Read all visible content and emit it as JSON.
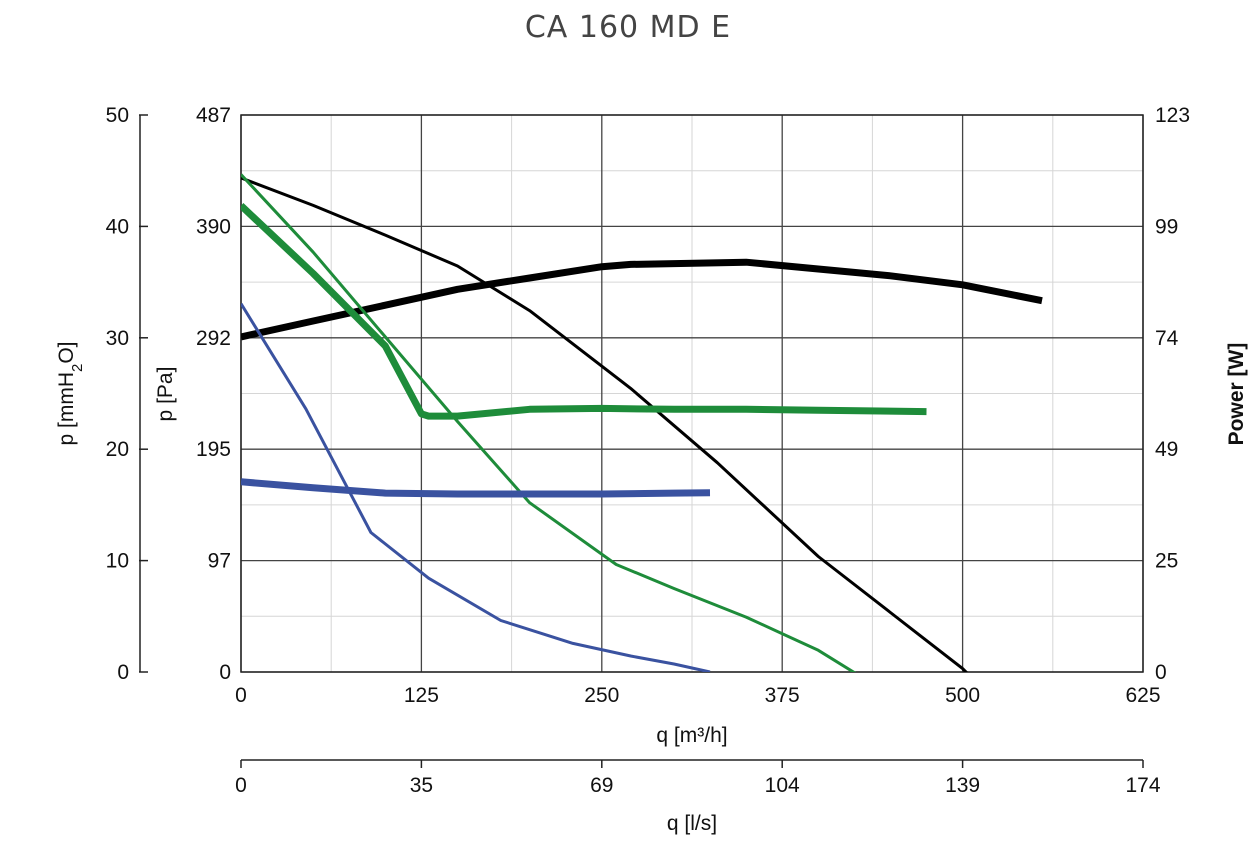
{
  "chart_data": {
    "type": "line",
    "title": "CA 160 MD E",
    "x_primary": {
      "label": "q [m³/h]",
      "range": [
        0,
        625
      ],
      "ticks": [
        "0",
        "125",
        "250",
        "375",
        "500",
        "625"
      ]
    },
    "x_secondary": {
      "label": "q [l/s]",
      "range": [
        0,
        174
      ],
      "ticks": [
        "0",
        "35",
        "69",
        "104",
        "139",
        "174"
      ]
    },
    "y_left_outer": {
      "label_main": "p [mmH",
      "label_sub": "2",
      "label_end": "O]",
      "range": [
        0,
        50
      ],
      "ticks": [
        "0",
        "10",
        "20",
        "30",
        "40",
        "50"
      ]
    },
    "y_left_inner": {
      "label": "p [Pa]",
      "range": [
        0,
        487
      ],
      "ticks": [
        "0",
        "97",
        "195",
        "292",
        "390",
        "487"
      ]
    },
    "y_right": {
      "label": "Power [W]",
      "range": [
        0,
        123
      ],
      "ticks": [
        "0",
        "25",
        "49",
        "74",
        "99",
        "123"
      ]
    },
    "grid": true,
    "series": [
      {
        "kind": "pressure",
        "color": "#000000",
        "width": 3,
        "axis": "pressure",
        "x": [
          0,
          50,
          100,
          150,
          200,
          270,
          330,
          400,
          450,
          500,
          530,
          550,
          555
        ],
        "y": [
          432,
          408,
          382,
          355,
          316,
          248,
          183,
          101,
          52,
          3,
          -35,
          -53,
          -63
        ]
      },
      {
        "kind": "power",
        "color": "#000000",
        "width": 7,
        "axis": "power",
        "x": [
          0,
          50,
          100,
          150,
          200,
          250,
          270,
          350,
          400,
          450,
          500,
          555
        ],
        "y": [
          74,
          77.5,
          81,
          84.5,
          87,
          89.5,
          90,
          90.5,
          89,
          87.5,
          85.5,
          82
        ]
      },
      {
        "kind": "pressure",
        "color": "#1e8c3a",
        "width": 3,
        "axis": "pressure",
        "x": [
          0,
          50,
          100,
          150,
          200,
          260,
          300,
          350,
          400,
          450,
          470,
          475
        ],
        "y": [
          435,
          367,
          293,
          219,
          148,
          94,
          73,
          48,
          19,
          -20,
          -35,
          -43
        ]
      },
      {
        "kind": "power",
        "color": "#1e8c3a",
        "width": 7,
        "axis": "power",
        "x": [
          0,
          50,
          100,
          125,
          130,
          150,
          200,
          250,
          300,
          350,
          400,
          475
        ],
        "y": [
          103,
          88,
          72,
          57,
          56.5,
          56.5,
          58,
          58.2,
          58,
          58,
          57.8,
          57.5
        ]
      },
      {
        "kind": "pressure",
        "color": "#3a52a0",
        "width": 3,
        "axis": "pressure",
        "x": [
          0,
          45,
          90,
          130,
          180,
          230,
          270,
          300,
          325
        ],
        "y": [
          322,
          230,
          122,
          82,
          45,
          25,
          14,
          7,
          0
        ]
      },
      {
        "kind": "power",
        "color": "#3a52a0",
        "width": 7,
        "axis": "power",
        "x": [
          0,
          50,
          100,
          150,
          200,
          250,
          300,
          325
        ],
        "y": [
          42,
          40.7,
          39.5,
          39.3,
          39.3,
          39.3,
          39.5,
          39.6
        ]
      }
    ]
  }
}
